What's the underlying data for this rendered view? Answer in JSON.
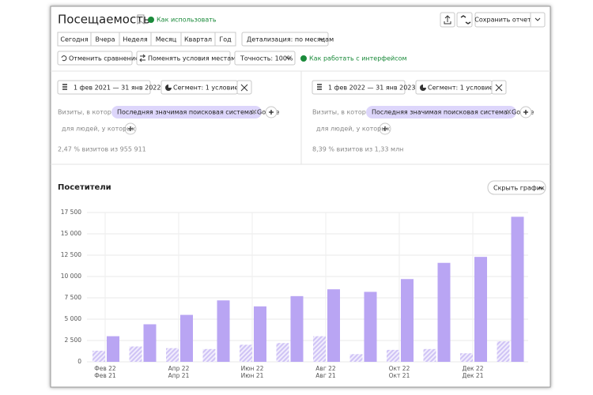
{
  "header": {
    "title": "Посещаемость",
    "help_link": "Как использовать",
    "save_button": "Сохранить отчет"
  },
  "periods": [
    "Сегодня",
    "Вчера",
    "Неделя",
    "Месяц",
    "Квартал",
    "Год"
  ],
  "detail": "Детализация: по месяцам",
  "actions": {
    "cancel_compare": "Отменить сравнение",
    "swap": "Поменять условия местами",
    "accuracy": "Точность: 100%",
    "interface_help": "Как работать с интерфейсом"
  },
  "segments": [
    {
      "date": "1 фев 2021 — 31 янв 2022",
      "segment": "Сегмент: 1 условие",
      "visits_label": "Визиты, в которых",
      "condition": "Последняя значимая поисковая система: Google",
      "people_label": "для людей, у которых",
      "summary": "2,47 % визитов из 955 911"
    },
    {
      "date": "1 фев 2022 — 31 янв 2023",
      "segment": "Сегмент: 1 условие",
      "visits_label": "Визиты, в которых",
      "condition": "Последняя значимая поисковая система: Google",
      "people_label": "для людей, у которых",
      "summary": "8,39 % визитов из 1,33 млн"
    }
  ],
  "hide_chart": "Скрыть график",
  "chart_data": {
    "type": "bar",
    "title": "Посетители",
    "categories": [
      "Фев 22",
      null,
      "Апр 22",
      null,
      "Июн 22",
      null,
      "Авг 22",
      null,
      "Окт 22",
      null,
      "Дек 22",
      null
    ],
    "sub_categories": [
      "Фев 21",
      null,
      "Апр 21",
      null,
      "Июн 21",
      null,
      "Авг 21",
      null,
      "Окт 21",
      null,
      "Дек 21",
      null
    ],
    "series": [
      {
        "color": "#cfc3f5",
        "fill_style": "hatched",
        "values": [
          1300,
          1800,
          1600,
          1500,
          2000,
          2200,
          3000,
          900,
          1400,
          1500,
          1000,
          2400
        ]
      },
      {
        "color": "#b9a5f3",
        "fill_style": "solid",
        "values": [
          3000,
          4400,
          5500,
          7200,
          6500,
          7700,
          8500,
          8200,
          9700,
          11600,
          12300,
          17000
        ]
      }
    ],
    "ylim": [
      0,
      17500
    ],
    "yticks": [
      0,
      {
        "value": 2500,
        "label": "2 500"
      },
      {
        "value": 5000,
        "label": "5 000"
      },
      {
        "value": 7500,
        "label": "7 500"
      },
      {
        "value": 10000,
        "label": "10 000"
      },
      {
        "value": 12500,
        "label": "12 500"
      },
      {
        "value": 15000,
        "label": "15 000"
      },
      {
        "value": 17500,
        "label": "17 500"
      }
    ],
    "grid": true
  }
}
